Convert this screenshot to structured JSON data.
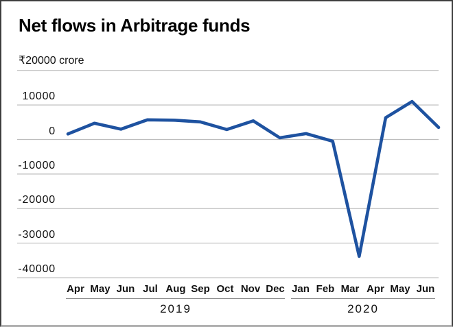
{
  "title": "Net flows in Arbitrage funds",
  "y_axis": {
    "top_label": "₹20000 crore",
    "ticks": [
      "10000",
      "0",
      "-10000",
      "-20000",
      "-30000",
      "-40000"
    ]
  },
  "x_axis": {
    "years": [
      "2019",
      "2020"
    ]
  },
  "chart_data": {
    "type": "line",
    "title": "Net flows in Arbitrage funds",
    "unit": "₹ crore",
    "categories": [
      "Apr",
      "May",
      "Jun",
      "Jul",
      "Aug",
      "Sep",
      "Oct",
      "Nov",
      "Dec",
      "Jan",
      "Feb",
      "Mar",
      "Apr",
      "May",
      "Jun"
    ],
    "year_groups": [
      {
        "label": "2019",
        "start": 0,
        "end": 8
      },
      {
        "label": "2020",
        "start": 9,
        "end": 14
      }
    ],
    "series": [
      {
        "name": "Net flows",
        "values": [
          1600,
          4700,
          3000,
          5700,
          5600,
          5100,
          2900,
          5400,
          500,
          1700,
          -500,
          -33800,
          6300,
          11000,
          3500
        ]
      }
    ],
    "ylim": [
      -40000,
      20000
    ],
    "yticks": [
      20000,
      10000,
      0,
      -10000,
      -20000,
      -30000,
      -40000
    ],
    "grid": true,
    "legend": "none",
    "line_color": "#1e52a0",
    "grid_color": "#bdbdbd"
  }
}
